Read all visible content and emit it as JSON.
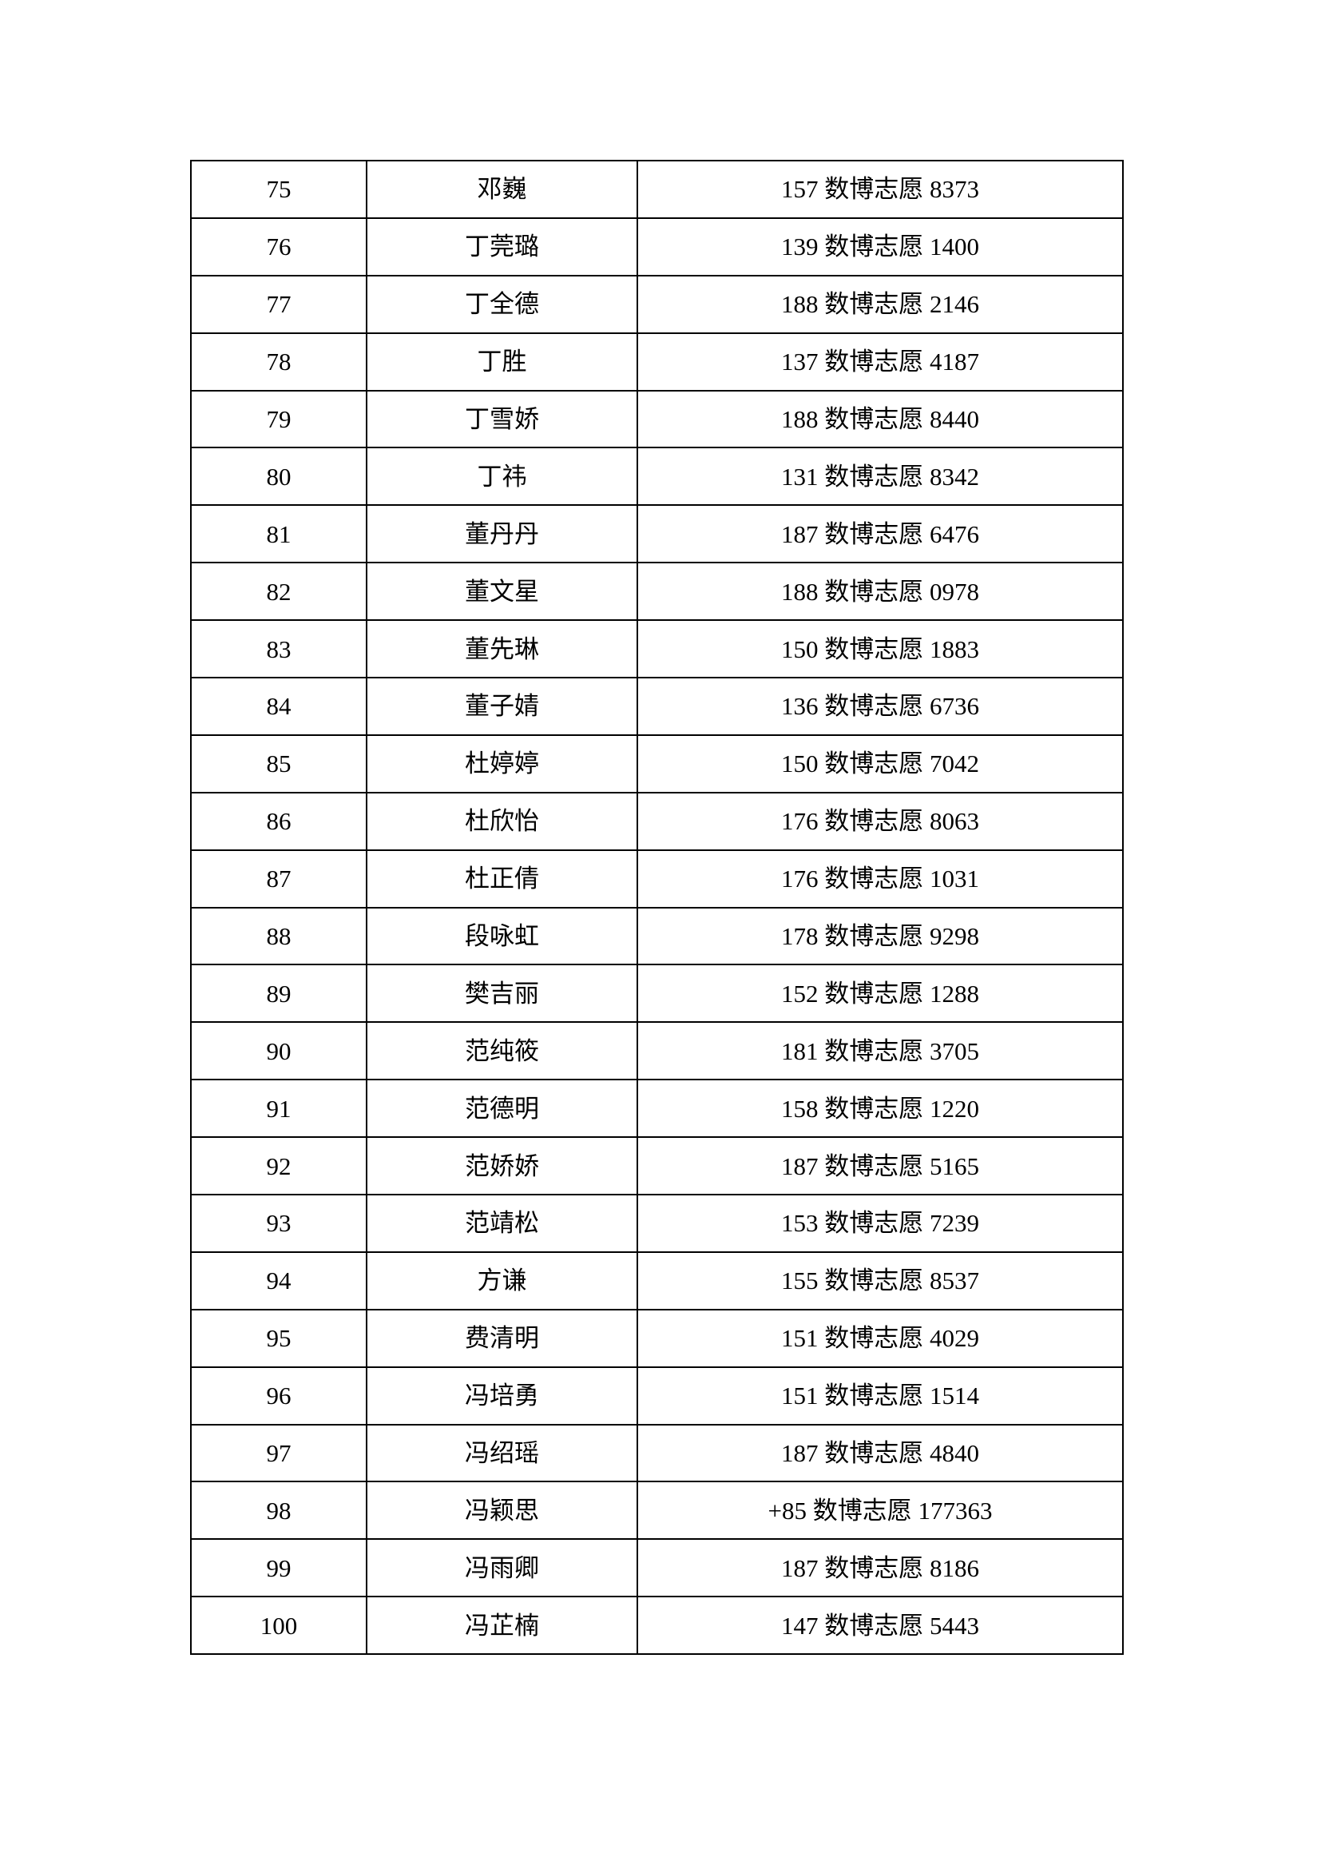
{
  "page": {
    "background_color": "#ffffff",
    "text_color": "#000000",
    "table_border_color": "#000000"
  },
  "roster_table": {
    "rows": [
      {
        "no": "75",
        "name": "邓巍",
        "contact": "157 数博志愿 8373"
      },
      {
        "no": "76",
        "name": "丁莞璐",
        "contact": "139 数博志愿 1400"
      },
      {
        "no": "77",
        "name": "丁全德",
        "contact": "188 数博志愿 2146"
      },
      {
        "no": "78",
        "name": "丁胜",
        "contact": "137 数博志愿 4187"
      },
      {
        "no": "79",
        "name": "丁雪娇",
        "contact": "188 数博志愿 8440"
      },
      {
        "no": "80",
        "name": "丁祎",
        "contact": "131 数博志愿 8342"
      },
      {
        "no": "81",
        "name": "董丹丹",
        "contact": "187 数博志愿 6476"
      },
      {
        "no": "82",
        "name": "董文星",
        "contact": "188 数博志愿 0978"
      },
      {
        "no": "83",
        "name": "董先琳",
        "contact": "150 数博志愿 1883"
      },
      {
        "no": "84",
        "name": "董子婧",
        "contact": "136 数博志愿 6736"
      },
      {
        "no": "85",
        "name": "杜婷婷",
        "contact": "150 数博志愿 7042"
      },
      {
        "no": "86",
        "name": "杜欣怡",
        "contact": "176 数博志愿 8063"
      },
      {
        "no": "87",
        "name": "杜正倩",
        "contact": "176 数博志愿 1031"
      },
      {
        "no": "88",
        "name": "段咏虹",
        "contact": "178 数博志愿 9298"
      },
      {
        "no": "89",
        "name": "樊吉丽",
        "contact": "152 数博志愿 1288"
      },
      {
        "no": "90",
        "name": "范纯筱",
        "contact": "181 数博志愿 3705"
      },
      {
        "no": "91",
        "name": "范德明",
        "contact": "158 数博志愿 1220"
      },
      {
        "no": "92",
        "name": "范娇娇",
        "contact": "187 数博志愿 5165"
      },
      {
        "no": "93",
        "name": "范靖松",
        "contact": "153 数博志愿 7239"
      },
      {
        "no": "94",
        "name": "方谦",
        "contact": "155 数博志愿 8537"
      },
      {
        "no": "95",
        "name": "费清明",
        "contact": "151 数博志愿 4029"
      },
      {
        "no": "96",
        "name": "冯培勇",
        "contact": "151 数博志愿 1514"
      },
      {
        "no": "97",
        "name": "冯绍瑶",
        "contact": "187 数博志愿 4840"
      },
      {
        "no": "98",
        "name": "冯颖思",
        "contact": "+85 数博志愿 177363"
      },
      {
        "no": "99",
        "name": "冯雨卿",
        "contact": "187 数博志愿 8186"
      },
      {
        "no": "100",
        "name": "冯芷楠",
        "contact": "147 数博志愿 5443"
      }
    ]
  }
}
